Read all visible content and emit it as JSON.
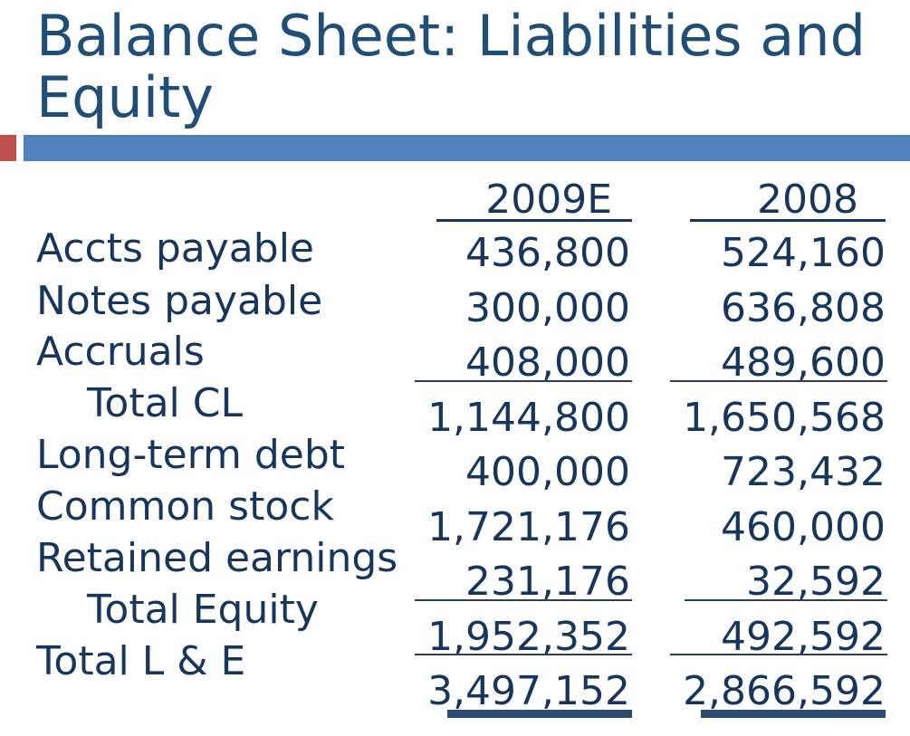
{
  "title": {
    "line1": "Balance Sheet: Liabilities and",
    "line2": "Equity"
  },
  "columns": [
    "2009E",
    "2008"
  ],
  "rows": [
    {
      "label": "Accts payable",
      "y2009E": "436,800",
      "y2008": "524,160"
    },
    {
      "label": "Notes payable",
      "y2009E": "300,000",
      "y2008": "636,808"
    },
    {
      "label": "Accruals",
      "y2009E": "408,000",
      "y2008": "489,600"
    },
    {
      "label": "Total CL",
      "y2009E": "1,144,800",
      "y2008": "1,650,568"
    },
    {
      "label": "Long-term debt",
      "y2009E": "400,000",
      "y2008": "723,432"
    },
    {
      "label": "Common stock",
      "y2009E": "1,721,176",
      "y2008": "460,000"
    },
    {
      "label": "Retained earnings",
      "y2009E": "231,176",
      "y2008": "32,592"
    },
    {
      "label": "Total Equity",
      "y2009E": "1,952,352",
      "y2008": "492,592"
    },
    {
      "label": "Total L & E",
      "y2009E": "3,497,152",
      "y2008": "2,866,592"
    }
  ],
  "colors": {
    "title": "#1f4e79",
    "body_text": "#17365d",
    "accent_red": "#c0504d",
    "accent_blue": "#4f81bd"
  }
}
